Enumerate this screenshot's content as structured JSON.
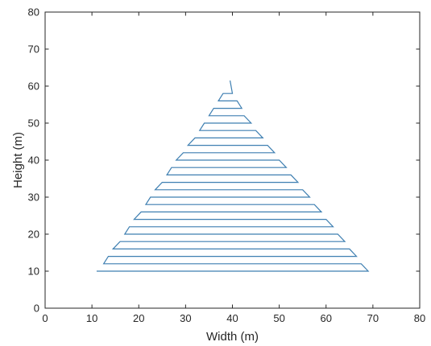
{
  "chart_data": {
    "type": "line",
    "title": "",
    "xlabel": "Width (m)",
    "ylabel": "Height (m)",
    "xlim": [
      0,
      80
    ],
    "ylim": [
      0,
      80
    ],
    "xticks": [
      0,
      10,
      20,
      30,
      40,
      50,
      60,
      70,
      80
    ],
    "yticks": [
      0,
      10,
      20,
      30,
      40,
      50,
      60,
      70,
      80
    ],
    "grid": false,
    "line_color": "#3e7fb1",
    "series": [
      {
        "x": [
          11,
          69,
          67.5,
          12.5,
          13.5,
          66.5,
          65,
          14.5,
          16,
          64,
          62.5,
          17,
          18,
          61.5,
          60,
          19,
          20.5,
          59,
          57.5,
          21.5,
          22.5,
          56.5,
          55,
          23.5,
          25,
          54,
          52.5,
          26,
          27,
          51.5,
          50,
          28,
          29.5,
          49,
          47.5,
          30.5,
          32,
          46.5,
          45,
          33,
          34,
          44,
          42.5,
          35,
          36,
          42,
          41,
          37,
          38,
          40,
          39.5
        ],
        "y": [
          10,
          10,
          12,
          12,
          14,
          14,
          16,
          16,
          18,
          18,
          20,
          20,
          22,
          22,
          24,
          24,
          26,
          26,
          28,
          28,
          30,
          30,
          32,
          32,
          34,
          34,
          36,
          36,
          38,
          38,
          40,
          40,
          42,
          42,
          44,
          44,
          46,
          46,
          48,
          48,
          50,
          50,
          52,
          52,
          54,
          54,
          56,
          56,
          58,
          58,
          61.5
        ]
      }
    ]
  }
}
